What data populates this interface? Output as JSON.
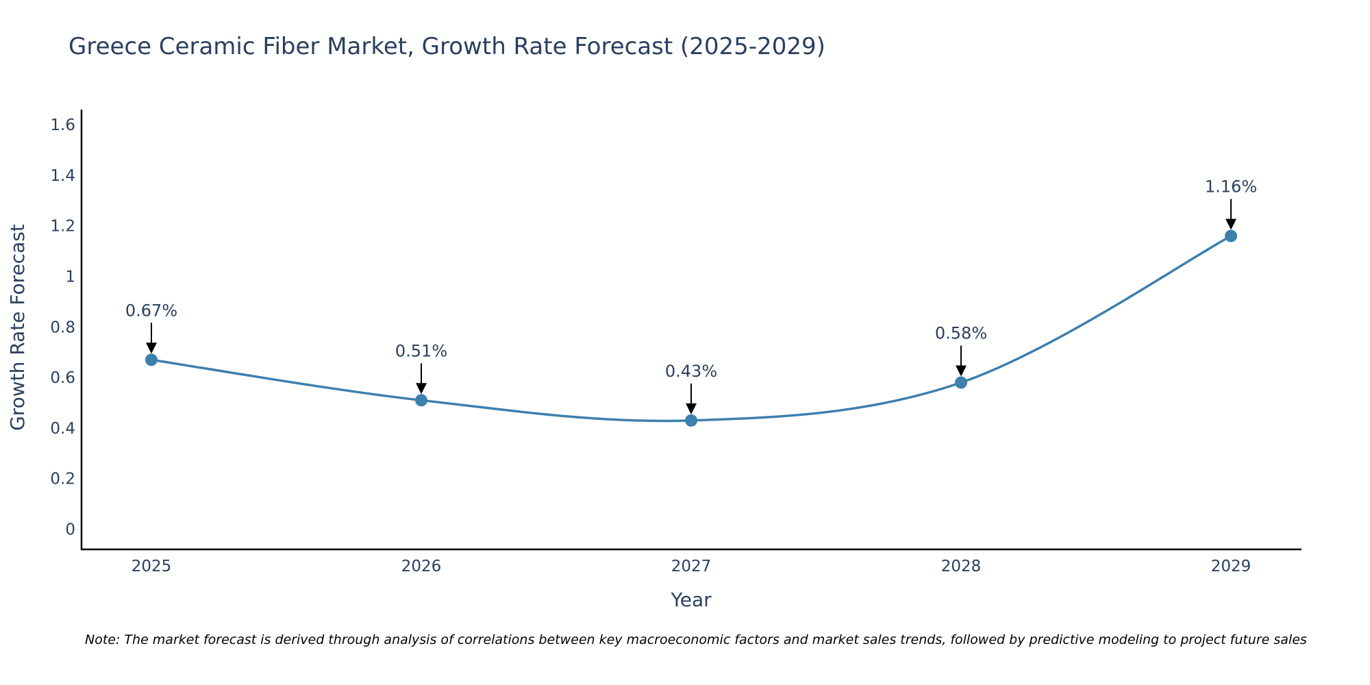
{
  "chart_data": {
    "type": "line",
    "title": "Greece Ceramic Fiber Market, Growth Rate Forecast (2025-2029)",
    "xlabel": "Year",
    "ylabel": "Growth Rate Forecast",
    "categories": [
      "2025",
      "2026",
      "2027",
      "2028",
      "2029"
    ],
    "values": [
      0.67,
      0.51,
      0.43,
      0.58,
      1.16
    ],
    "data_labels": [
      "0.67%",
      "0.51%",
      "0.43%",
      "0.58%",
      "1.16%"
    ],
    "ylim": [
      -0.08,
      1.66
    ],
    "yticks": [
      0,
      0.2,
      0.4,
      0.6,
      0.8,
      1,
      1.2,
      1.4,
      1.6
    ],
    "ytick_labels": [
      "0",
      "0.2",
      "0.4",
      "0.6",
      "0.8",
      "1",
      "1.2",
      "1.4",
      "1.6"
    ],
    "line_shape": "spline",
    "grid": false,
    "legend": "none",
    "colors": {
      "line": "#3d7fad",
      "marker": "#3d7fad",
      "axis": "#000000",
      "text": "#2a3f5f",
      "arrow": "#000000"
    }
  },
  "note": "Note: The market forecast is derived through analysis of correlations between key macroeconomic factors and market sales trends, followed by predictive modeling to project future sales"
}
